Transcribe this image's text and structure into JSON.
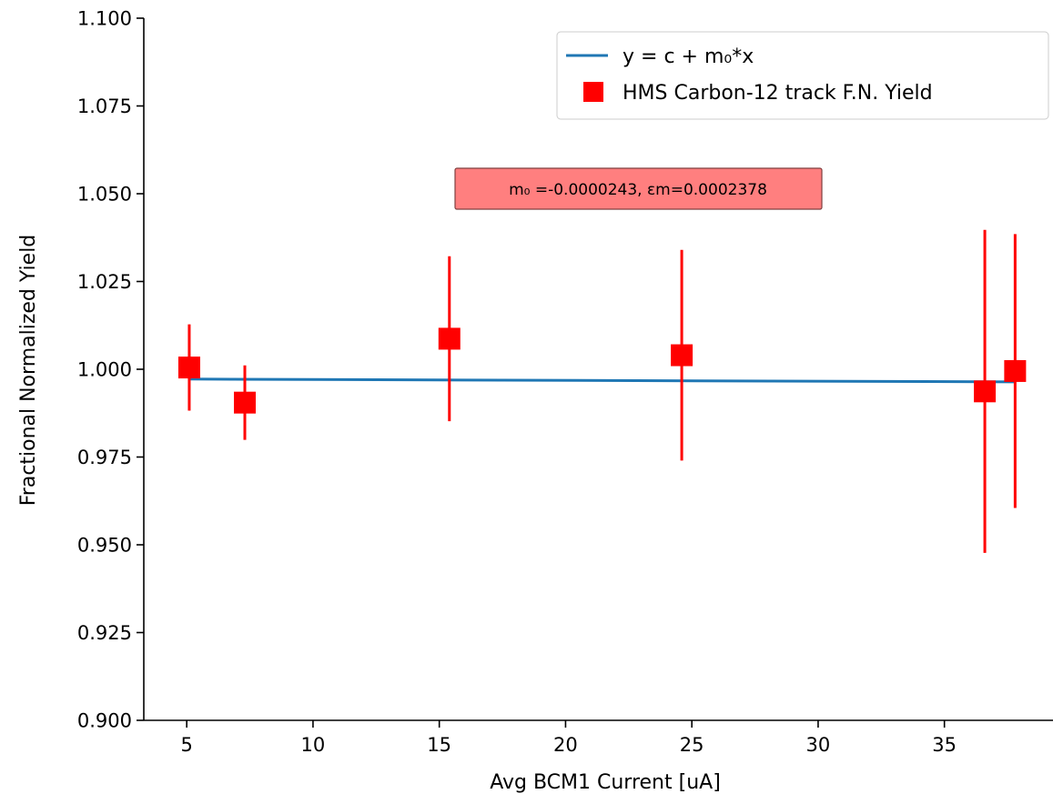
{
  "chart_data": {
    "type": "scatter",
    "xlabel": "Avg BCM1 Current [uA]",
    "ylabel": "Fractional Normalized Yield",
    "xlim": [
      3.3,
      39.3
    ],
    "ylim": [
      0.9,
      1.1
    ],
    "x_ticks": [
      5,
      10,
      15,
      20,
      25,
      30,
      35
    ],
    "y_ticks": [
      0.9,
      0.925,
      0.95,
      0.975,
      1.0,
      1.025,
      1.05,
      1.075,
      1.1
    ],
    "x_tick_labels": [
      "5",
      "10",
      "15",
      "20",
      "25",
      "30",
      "35"
    ],
    "y_tick_labels": [
      "0.900",
      "0.925",
      "0.950",
      "0.975",
      "1.000",
      "1.025",
      "1.050",
      "1.075",
      "1.100"
    ],
    "grid": false,
    "legend_position": "top-right",
    "series": [
      {
        "name": "HMS Carbon-12 track F.N. Yield",
        "kind": "points_with_errorbars",
        "color": "#ff0000",
        "x": [
          5.1,
          7.3,
          15.4,
          24.6,
          36.6,
          37.8
        ],
        "y": [
          1.0005,
          0.9905,
          1.0087,
          1.004,
          0.9937,
          0.9995
        ],
        "yerr": [
          0.0123,
          0.0106,
          0.0235,
          0.03,
          0.046,
          0.039
        ]
      },
      {
        "name": "y = c + m₀*x",
        "kind": "line",
        "color": "#1f77b4",
        "x": [
          5.1,
          37.8
        ],
        "y": [
          0.9972,
          0.9964
        ]
      }
    ],
    "annotation": {
      "text": "m₀ =-0.0000243, εm=0.0002378",
      "background": "#ff7f7f",
      "border": "#7f3f3f"
    }
  }
}
